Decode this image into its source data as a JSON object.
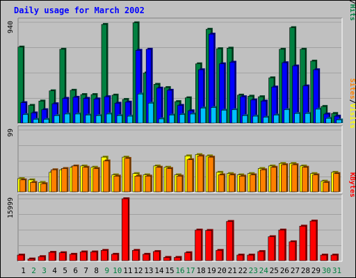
{
  "chart_data": {
    "type": "bar",
    "title": "Daily usage for March 2002",
    "days": [
      "1",
      "2",
      "3",
      "4",
      "5",
      "6",
      "7",
      "8",
      "9",
      "10",
      "11",
      "12",
      "13",
      "14",
      "15",
      "16",
      "17",
      "18",
      "19",
      "20",
      "21",
      "22",
      "23",
      "24",
      "25",
      "26",
      "27",
      "28",
      "29",
      "30",
      "31"
    ],
    "weekend_days": [
      "2",
      "3",
      "9",
      "10",
      "16",
      "17",
      "23",
      "24",
      "30",
      "31"
    ],
    "panels": [
      {
        "id": "hits-files-pages",
        "ymax_label": "940",
        "ylim": [
          0,
          940
        ],
        "labels": [
          {
            "text": "Pages",
            "color": "#00c0ff"
          },
          {
            "text": "/",
            "color": "#000000"
          },
          {
            "text": "Files",
            "color": "#0000ff"
          },
          {
            "text": "/",
            "color": "#000000"
          },
          {
            "text": "Hits",
            "color": "#008040"
          }
        ],
        "series": [
          {
            "name": "Hits",
            "color": "#008040",
            "values": [
              710,
              170,
              210,
              305,
              690,
              310,
              270,
              270,
              920,
              265,
              225,
              935,
              470,
              365,
              335,
              205,
              240,
              555,
              875,
              695,
              700,
              265,
              255,
              250,
              425,
              690,
              890,
              690,
              580,
              160,
              95
            ]
          },
          {
            "name": "Files",
            "color": "#0000ff",
            "values": [
              195,
              100,
              130,
              185,
              235,
              245,
              235,
              230,
              250,
              190,
              200,
              680,
              690,
              330,
              310,
              170,
              120,
              500,
              830,
              555,
              570,
              250,
              220,
              210,
              340,
              565,
              535,
              350,
              500,
              90,
              70
            ]
          },
          {
            "name": "Pages",
            "color": "#00c0ff",
            "values": [
              85,
              40,
              40,
              75,
              90,
              90,
              80,
              75,
              90,
              75,
              70,
              275,
              190,
              45,
              80,
              85,
              90,
              145,
              150,
              125,
              130,
              75,
              70,
              60,
              80,
              130,
              95,
              95,
              135,
              50,
              35
            ]
          }
        ]
      },
      {
        "id": "visits-sites",
        "ymax_label": "99",
        "ylim": [
          0,
          99
        ],
        "labels": [
          {
            "text": "Sites",
            "color": "#ff8000"
          },
          {
            "text": "/",
            "color": "#000000"
          },
          {
            "text": "Visits",
            "color": "#ffff00"
          }
        ],
        "series": [
          {
            "name": "Visits",
            "color": "#ffff00",
            "values": [
              22,
              20,
              16,
              32,
              36,
              40,
              42,
              40,
              56,
              28,
              56,
              30,
              28,
              42,
              40,
              28,
              58,
              60,
              58,
              32,
              30,
              28,
              30,
              38,
              42,
              46,
              46,
              42,
              30,
              18,
              32
            ]
          },
          {
            "name": "Sites",
            "color": "#ff8000",
            "values": [
              20,
              16,
              14,
              36,
              38,
              42,
              40,
              38,
              50,
              26,
              54,
              26,
              26,
              40,
              38,
              26,
              52,
              58,
              56,
              28,
              28,
              26,
              28,
              36,
              40,
              44,
              44,
              40,
              28,
              16,
              30
            ]
          }
        ]
      },
      {
        "id": "kbytes",
        "ymax_label": "15999",
        "ylim": [
          0,
          15999
        ],
        "labels": [
          {
            "text": "KBytes",
            "color": "#ff0000"
          }
        ],
        "series": [
          {
            "name": "KBytes",
            "color": "#ff0000",
            "values": [
              1600,
              600,
              1200,
              2300,
              2200,
              1800,
              2400,
              2400,
              2800,
              1800,
              15999,
              2800,
              1800,
              2500,
              1000,
              1000,
              2200,
              8000,
              7900,
              2800,
              10200,
              1600,
              1600,
              2500,
              6300,
              8000,
              5000,
              9000,
              10300,
              1600,
              1600
            ]
          }
        ]
      }
    ]
  }
}
